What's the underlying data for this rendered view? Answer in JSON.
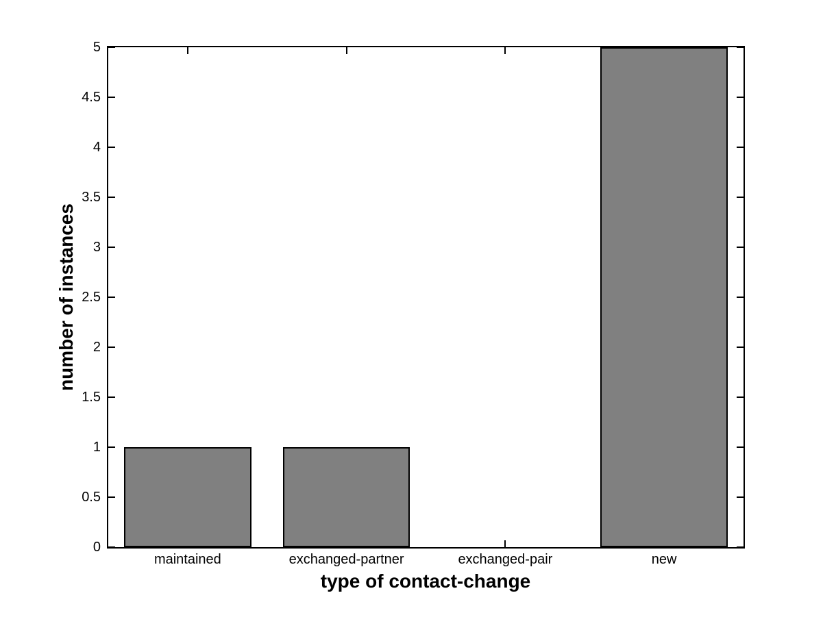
{
  "figure": {
    "background": "#ffffff"
  },
  "chart_data": {
    "type": "bar",
    "title": "",
    "categories": [
      "maintained",
      "exchanged-partner",
      "exchanged-pair",
      "new"
    ],
    "values": [
      1,
      1,
      0,
      5
    ],
    "xlabel": "type of contact-change",
    "ylabel": "number of instances",
    "xlim": [
      0.5,
      4.5
    ],
    "ylim": [
      0,
      5
    ],
    "yticks": [
      0,
      0.5,
      1,
      1.5,
      2,
      2.5,
      3,
      3.5,
      4,
      4.5,
      5
    ],
    "ytick_labels": [
      "0",
      "0.5",
      "1",
      "1.5",
      "2",
      "2.5",
      "3",
      "3.5",
      "4",
      "4.5",
      "5"
    ],
    "bar_width_fraction": 0.8,
    "grid": false,
    "legend": null,
    "box": true,
    "tick_direction": "in",
    "colors": {
      "bar_fill": "#808080",
      "bar_edge": "#000000",
      "axis": "#000000",
      "text": "#000000",
      "background": "#ffffff"
    }
  }
}
